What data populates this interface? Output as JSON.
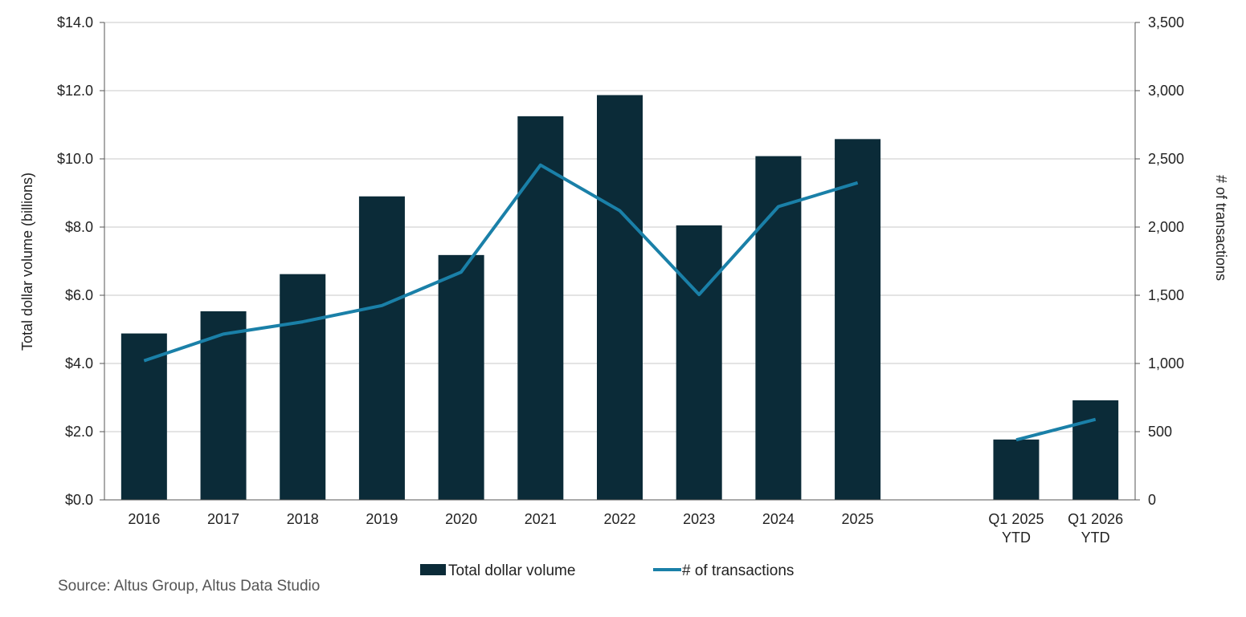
{
  "chart_data": {
    "type": "bar",
    "categories": [
      "2016",
      "2017",
      "2018",
      "2019",
      "2020",
      "2021",
      "2022",
      "2023",
      "2024",
      "2025",
      "",
      "Q1 2025 YTD",
      "Q1 2026 YTD"
    ],
    "category_lines": [
      [
        "2016"
      ],
      [
        "2017"
      ],
      [
        "2018"
      ],
      [
        "2019"
      ],
      [
        "2020"
      ],
      [
        "2021"
      ],
      [
        "2022"
      ],
      [
        "2023"
      ],
      [
        "2024"
      ],
      [
        "2025"
      ],
      [],
      [
        "Q1 2025",
        "YTD"
      ],
      [
        "Q1 2026",
        "YTD"
      ]
    ],
    "series": [
      {
        "name": "Total dollar volume",
        "type": "bar",
        "axis": "left",
        "color": "#0b2b38",
        "values": [
          4.88,
          5.53,
          6.62,
          8.9,
          7.18,
          11.25,
          11.87,
          8.05,
          10.08,
          10.58,
          null,
          1.77,
          2.92
        ]
      },
      {
        "name": "# of transactions",
        "type": "line",
        "axis": "right",
        "color": "#1a80a8",
        "segments": [
          {
            "values": [
              1020,
              1215,
              1305,
              1425,
              1670,
              2455,
              2120,
              1505,
              2150,
              2325
            ]
          },
          {
            "values": [
              440,
              590
            ],
            "start_index": 11
          }
        ]
      }
    ],
    "y_left": {
      "label": "Total dollar volume (billions)",
      "min": 0,
      "max": 14,
      "ticks": [
        "$0.0",
        "$2.0",
        "$4.0",
        "$6.0",
        "$8.0",
        "$10.0",
        "$12.0",
        "$14.0"
      ]
    },
    "y_right": {
      "label": "# of transactions",
      "min": 0,
      "max": 3500,
      "ticks": [
        "0",
        "500",
        "1,000",
        "1,500",
        "2,000",
        "2,500",
        "3,000",
        "3,500"
      ]
    },
    "grid": true,
    "legend_position": "bottom",
    "source": "Source:  Altus Group, Altus Data Studio"
  }
}
